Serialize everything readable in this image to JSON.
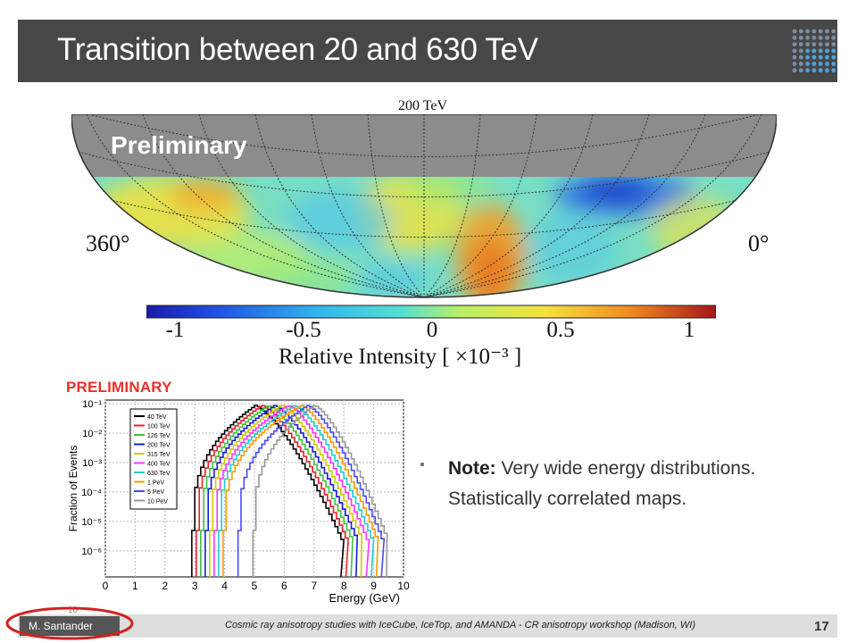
{
  "slide": {
    "title": "Transition between 20 and 630 TeV",
    "map": {
      "title": "200 TeV",
      "overlay": "Preliminary",
      "lon_left": "360°",
      "lon_right": "0°",
      "colorbar_ticks": [
        "-1",
        "-0.5",
        "0",
        "0.5",
        "1"
      ],
      "colorbar_label": "Relative Intensity [ ×10⁻³ ]"
    },
    "plot": {
      "preliminary": "PRELIMINARY",
      "ylabel": "Fraction of Events",
      "xlabel": "Energy (GeV)",
      "x_ticks": [
        "0",
        "1",
        "2",
        "3",
        "4",
        "5",
        "6",
        "7",
        "8",
        "9",
        "10"
      ],
      "y_ticks": [
        "10⁻¹",
        "10⁻²",
        "10⁻³",
        "10⁻⁴",
        "10⁻⁵",
        "10⁻⁶"
      ],
      "legend": [
        "40 TeV",
        "100 TeV",
        "126 TeV",
        "200 TeV",
        "315 TeV",
        "400 TeV",
        "630 TeV",
        "1 PeV",
        "5 PeV",
        "10 PeV"
      ],
      "colors": [
        "#000000",
        "#e8202a",
        "#3cc43c",
        "#1a1adc",
        "#cccc00",
        "#ff33ff",
        "#22cccc",
        "#ff9900",
        "#4a4aff",
        "#999999"
      ]
    },
    "note": {
      "bold": "Note:",
      "line1": " Very wide energy distributions.",
      "line2": "Statistically correlated maps."
    },
    "footer": {
      "author": "M. Santander",
      "text": "Cosmic ray anisotropy studies with IceCube, IceTop, and AMANDA - CR anisotropy workshop (Madison, WI)",
      "page": "17",
      "small_number": "10"
    },
    "accent_color": "#d42020"
  }
}
